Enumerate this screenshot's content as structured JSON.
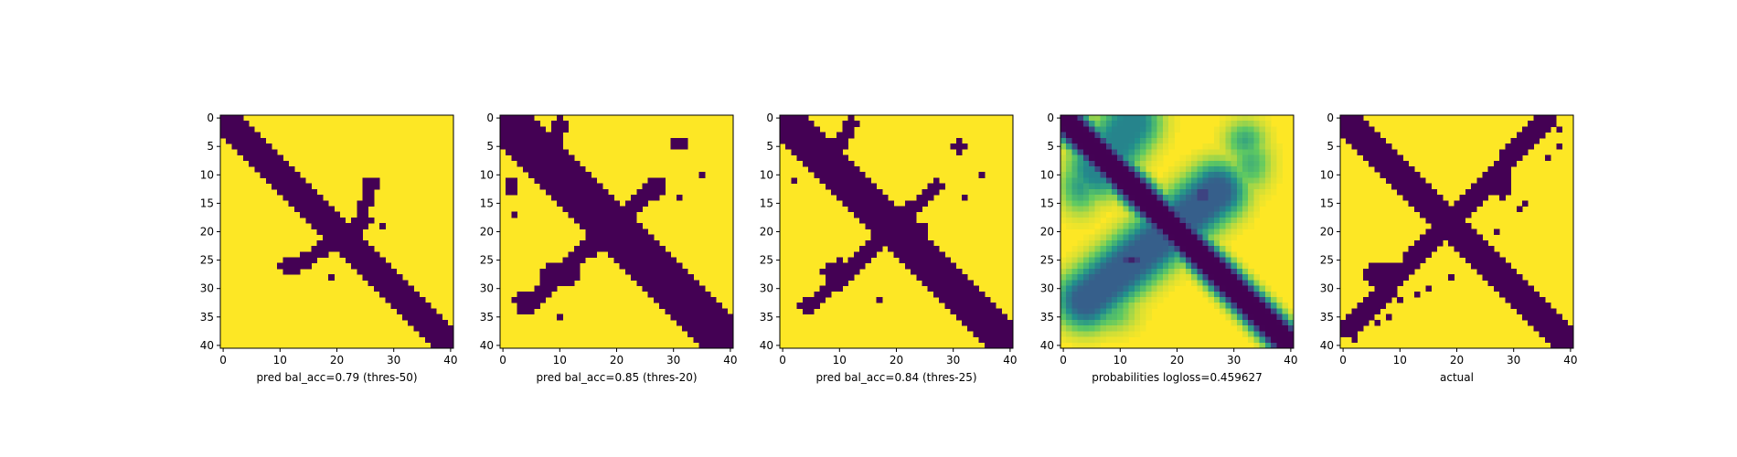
{
  "colors": {
    "viridis_low": "#440154",
    "viridis_high": "#fde725",
    "viridis_stops": [
      "#440154",
      "#3b528b",
      "#21918c",
      "#5ec962",
      "#fde725"
    ],
    "axis": "#000000",
    "background": "#ffffff"
  },
  "chart_data": [
    {
      "type": "heatmap",
      "title": "",
      "xlabel": "pred bal_acc=0.79 (thres-50)",
      "ylabel": "",
      "xlim": [
        0,
        40
      ],
      "ylim": [
        40,
        0
      ],
      "xticks": [
        "0",
        "10",
        "20",
        "30",
        "40"
      ],
      "yticks": [
        "0",
        "5",
        "10",
        "15",
        "20",
        "25",
        "30",
        "35",
        "40"
      ],
      "grid": false,
      "legend": "none",
      "grid_size": 41,
      "colormap": "viridis",
      "binary": true,
      "features": [
        {
          "shape": "band",
          "from": [
            0,
            0
          ],
          "to": [
            40,
            40
          ],
          "width": 2.6
        },
        {
          "shape": "band",
          "from": [
            13,
            26
          ],
          "to": [
            25,
            18
          ],
          "width": 1.3
        },
        {
          "shape": "band",
          "from": [
            23,
            21
          ],
          "to": [
            26,
            12
          ],
          "width": 1.0
        },
        {
          "shape": "blob",
          "center": [
            12,
            26
          ],
          "size": [
            2,
            1.2
          ]
        },
        {
          "shape": "blob",
          "center": [
            26,
            11.5
          ],
          "size": [
            1.6,
            1.4
          ]
        },
        {
          "shape": "point",
          "cell": [
            28,
            19
          ]
        },
        {
          "shape": "point",
          "cell": [
            19,
            28
          ]
        }
      ]
    },
    {
      "type": "heatmap",
      "title": "",
      "xlabel": "pred bal_acc=0.85 (thres-20)",
      "ylabel": "",
      "xlim": [
        0,
        40
      ],
      "ylim": [
        40,
        0
      ],
      "xticks": [
        "0",
        "10",
        "20",
        "30",
        "40"
      ],
      "yticks": [
        "0",
        "5",
        "10",
        "15",
        "20",
        "25",
        "30",
        "35",
        "40"
      ],
      "grid": false,
      "legend": "none",
      "grid_size": 41,
      "colormap": "viridis",
      "binary": true,
      "features": [
        {
          "shape": "band",
          "from": [
            0,
            0
          ],
          "to": [
            40,
            40
          ],
          "width": 4.2
        },
        {
          "shape": "band",
          "from": [
            4,
            33
          ],
          "to": [
            27,
            12
          ],
          "width": 1.5
        },
        {
          "shape": "band",
          "from": [
            10,
            1
          ],
          "to": [
            6,
            10
          ],
          "width": 1.4
        },
        {
          "shape": "blob",
          "center": [
            10,
            27.5
          ],
          "size": [
            3.2,
            2.4
          ]
        },
        {
          "shape": "blob",
          "center": [
            4,
            5
          ],
          "size": [
            2.5,
            2.5
          ]
        },
        {
          "shape": "blob",
          "center": [
            22,
            20
          ],
          "size": [
            3,
            2.5
          ]
        },
        {
          "shape": "blob",
          "center": [
            31,
            4.5
          ],
          "size": [
            1.5,
            1.2
          ]
        },
        {
          "shape": "blob",
          "center": [
            3,
            32
          ],
          "size": [
            1.3,
            1.2
          ]
        },
        {
          "shape": "blob",
          "center": [
            1.5,
            12
          ],
          "size": [
            1.2,
            1.2
          ]
        },
        {
          "shape": "point",
          "cell": [
            35,
            10
          ]
        },
        {
          "shape": "point",
          "cell": [
            10,
            35
          ]
        },
        {
          "shape": "point",
          "cell": [
            2,
            17
          ]
        },
        {
          "shape": "point",
          "cell": [
            31,
            14
          ]
        }
      ]
    },
    {
      "type": "heatmap",
      "title": "",
      "xlabel": "pred bal_acc=0.84 (thres-25)",
      "ylabel": "",
      "xlim": [
        0,
        40
      ],
      "ylim": [
        40,
        0
      ],
      "xticks": [
        "0",
        "10",
        "20",
        "30",
        "40"
      ],
      "yticks": [
        "0",
        "5",
        "10",
        "15",
        "20",
        "25",
        "30",
        "35",
        "40"
      ],
      "grid": false,
      "legend": "none",
      "grid_size": 41,
      "colormap": "viridis",
      "binary": true,
      "features": [
        {
          "shape": "band",
          "from": [
            0,
            0
          ],
          "to": [
            40,
            40
          ],
          "width": 3.5
        },
        {
          "shape": "band",
          "from": [
            5,
            33
          ],
          "to": [
            27,
            12
          ],
          "width": 1.3
        },
        {
          "shape": "band",
          "from": [
            12,
            1
          ],
          "to": [
            7,
            10
          ],
          "width": 1.2
        },
        {
          "shape": "blob",
          "center": [
            10,
            27
          ],
          "size": [
            3,
            2
          ]
        },
        {
          "shape": "blob",
          "center": [
            5,
            6
          ],
          "size": [
            2.5,
            2.5
          ]
        },
        {
          "shape": "blob",
          "center": [
            23,
            20
          ],
          "size": [
            2.5,
            2
          ]
        },
        {
          "shape": "blob",
          "center": [
            31,
            5
          ],
          "size": [
            1.2,
            1.2
          ]
        },
        {
          "shape": "blob",
          "center": [
            4,
            33
          ],
          "size": [
            1.2,
            1
          ]
        },
        {
          "shape": "point",
          "cell": [
            35,
            10
          ]
        },
        {
          "shape": "point",
          "cell": [
            2,
            11
          ]
        },
        {
          "shape": "point",
          "cell": [
            32,
            14
          ]
        },
        {
          "shape": "point",
          "cell": [
            17,
            32
          ]
        }
      ]
    },
    {
      "type": "heatmap",
      "title": "",
      "xlabel": "probabilities logloss=0.459627",
      "ylabel": "",
      "xlim": [
        0,
        40
      ],
      "ylim": [
        40,
        0
      ],
      "xticks": [
        "0",
        "10",
        "20",
        "30",
        "40"
      ],
      "yticks": [
        "0",
        "5",
        "10",
        "15",
        "20",
        "25",
        "30",
        "35",
        "40"
      ],
      "grid": false,
      "legend": "none",
      "grid_size": 41,
      "colormap": "viridis",
      "binary": false,
      "features": [
        {
          "shape": "band",
          "from": [
            0,
            0
          ],
          "to": [
            40,
            40
          ],
          "width": 1.3,
          "peak": 1.0,
          "soft": 1.2
        },
        {
          "shape": "band",
          "from": [
            4,
            32
          ],
          "to": [
            27,
            13
          ],
          "width": 1.6,
          "peak": 0.7,
          "soft": 2.5
        },
        {
          "shape": "band",
          "from": [
            12,
            1
          ],
          "to": [
            6,
            9
          ],
          "width": 1.5,
          "peak": 0.55,
          "soft": 2.5
        },
        {
          "shape": "blob",
          "center": [
            12,
            25
          ],
          "size": [
            2.8,
            1.6
          ],
          "peak": 0.9
        },
        {
          "shape": "blob",
          "center": [
            24.5,
            13.5
          ],
          "size": [
            1.6,
            2.6
          ],
          "peak": 0.9
        },
        {
          "shape": "blob",
          "center": [
            20,
            20
          ],
          "size": [
            4,
            3
          ],
          "peak": 0.55
        },
        {
          "shape": "blob",
          "center": [
            3,
            12
          ],
          "size": [
            3,
            4
          ],
          "peak": 0.45
        },
        {
          "shape": "blob",
          "center": [
            32,
            4
          ],
          "size": [
            3,
            3
          ],
          "peak": 0.4
        },
        {
          "shape": "blob",
          "center": [
            4,
            33
          ],
          "size": [
            2.5,
            2.5
          ],
          "peak": 0.5
        },
        {
          "shape": "blob",
          "center": [
            33,
            8
          ],
          "size": [
            3,
            4
          ],
          "peak": 0.35
        },
        {
          "shape": "blob",
          "center": [
            8,
            34
          ],
          "size": [
            4,
            3
          ],
          "peak": 0.35
        }
      ]
    },
    {
      "type": "heatmap",
      "title": "",
      "xlabel": "actual",
      "ylabel": "",
      "xlim": [
        0,
        40
      ],
      "ylim": [
        40,
        0
      ],
      "xticks": [
        "0",
        "10",
        "20",
        "30",
        "40"
      ],
      "yticks": [
        "0",
        "5",
        "10",
        "15",
        "20",
        "25",
        "30",
        "35",
        "40"
      ],
      "grid": false,
      "legend": "none",
      "grid_size": 41,
      "colormap": "viridis",
      "binary": true,
      "features": [
        {
          "shape": "band",
          "from": [
            0,
            0
          ],
          "to": [
            40,
            40
          ],
          "width": 2.7
        },
        {
          "shape": "band",
          "from": [
            36,
            0
          ],
          "to": [
            1,
            37
          ],
          "width": 1.7
        },
        {
          "shape": "blob",
          "center": [
            7,
            27.5
          ],
          "size": [
            3.5,
            2
          ]
        },
        {
          "shape": "blob",
          "center": [
            28,
            11
          ],
          "size": [
            1.5,
            3
          ]
        },
        {
          "shape": "point",
          "cell": [
            38,
            2
          ]
        },
        {
          "shape": "point",
          "cell": [
            38,
            5
          ]
        },
        {
          "shape": "point",
          "cell": [
            36,
            7
          ]
        },
        {
          "shape": "point",
          "cell": [
            32,
            15
          ]
        },
        {
          "shape": "point",
          "cell": [
            31,
            16
          ]
        },
        {
          "shape": "point",
          "cell": [
            27,
            20
          ]
        },
        {
          "shape": "point",
          "cell": [
            15,
            30
          ]
        },
        {
          "shape": "point",
          "cell": [
            13,
            31
          ]
        },
        {
          "shape": "point",
          "cell": [
            10,
            32
          ]
        },
        {
          "shape": "point",
          "cell": [
            8,
            35
          ]
        },
        {
          "shape": "point",
          "cell": [
            6,
            36
          ]
        },
        {
          "shape": "point",
          "cell": [
            2,
            39
          ]
        },
        {
          "shape": "point",
          "cell": [
            19,
            28
          ]
        }
      ]
    }
  ]
}
